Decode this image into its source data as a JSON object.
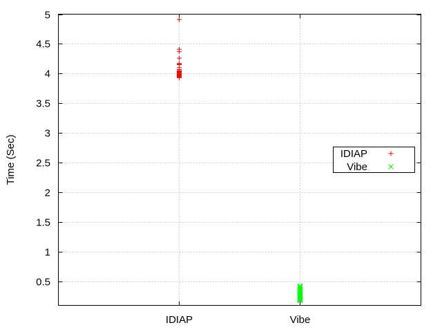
{
  "chart_data": {
    "type": "scatter",
    "title": "",
    "xlabel": "",
    "ylabel": "Time (Sec)",
    "categories": [
      "IDIAP",
      "Vibe"
    ],
    "ylim": [
      0.1,
      5
    ],
    "yticks": [
      "0.5",
      "1",
      "1.5",
      "2",
      "2.5",
      "3",
      "3.5",
      "4",
      "4.5",
      "5"
    ],
    "grid": true,
    "legend_position": "right",
    "series": [
      {
        "name": "IDIAP",
        "marker": "+",
        "color": "#ff0000",
        "category": "IDIAP",
        "values": [
          4.91,
          4.41,
          4.37,
          4.26,
          4.17,
          4.16,
          4.15,
          4.1,
          4.07,
          4.05,
          4.04,
          4.03,
          4.02,
          4.01,
          4.0,
          3.99,
          3.98,
          3.97,
          3.96,
          3.95,
          3.94,
          3.93
        ]
      },
      {
        "name": "Vibe",
        "marker": "x",
        "color": "#00ff00",
        "category": "Vibe",
        "values": [
          0.43,
          0.41,
          0.4,
          0.38,
          0.36,
          0.34,
          0.32,
          0.3,
          0.29,
          0.28,
          0.27,
          0.26,
          0.25,
          0.24,
          0.23,
          0.22,
          0.21,
          0.2,
          0.19,
          0.18
        ]
      }
    ]
  }
}
